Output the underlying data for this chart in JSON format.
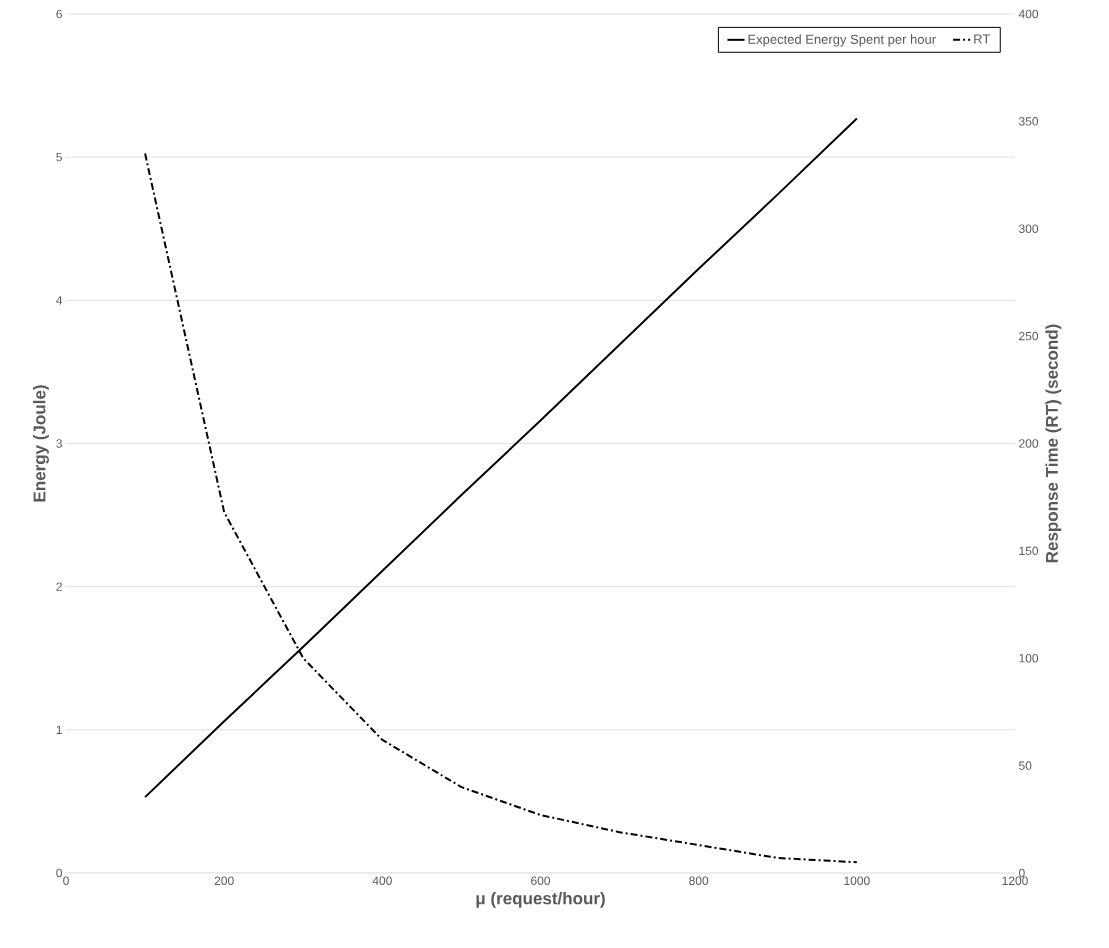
{
  "chart_data": {
    "type": "line",
    "xlabel": "μ (request/hour)",
    "ylabel": "Energy (Joule)",
    "y2label": "Response Time (RT) (second)",
    "x": [
      100,
      200,
      300,
      400,
      500,
      600,
      700,
      800,
      900,
      1000
    ],
    "series": [
      {
        "name": "Expected Energy Spent per hour",
        "color": "#000000",
        "line_style": "solid",
        "values": [
          0.53,
          1.06,
          1.58,
          2.11,
          2.64,
          3.16,
          3.69,
          4.22,
          4.74,
          5.27
        ]
      },
      {
        "name": "RT",
        "color": "#000000",
        "line_style": "dashdot",
        "axis": "y2",
        "values": [
          335,
          168,
          100,
          62,
          40,
          27,
          19,
          13,
          7,
          5
        ]
      }
    ],
    "xlim": [
      0,
      1200
    ],
    "xticks": [
      0,
      200,
      400,
      600,
      800,
      1000,
      1200
    ],
    "ylim": [
      0,
      6
    ],
    "yticks": [
      0,
      1,
      2,
      3,
      4,
      5,
      6
    ],
    "y2lim": [
      0,
      400
    ],
    "y2ticks": [
      0,
      50,
      100,
      150,
      200,
      250,
      300,
      350,
      400
    ],
    "grid": "y",
    "legend": "top right",
    "marker": "none"
  }
}
